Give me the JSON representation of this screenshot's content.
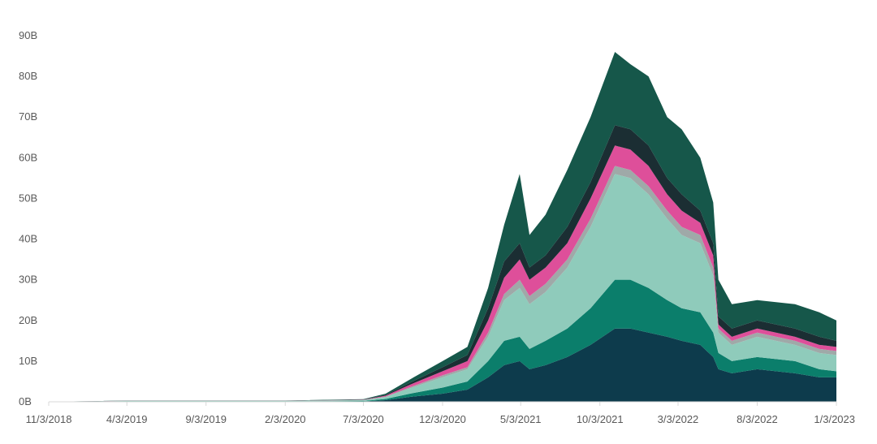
{
  "chart_data": {
    "type": "area",
    "stacked": true,
    "title": "",
    "xlabel": "",
    "ylabel": "",
    "ylim": [
      0,
      90
    ],
    "yticks": [
      "0B",
      "10B",
      "20B",
      "30B",
      "40B",
      "50B",
      "60B",
      "70B",
      "80B",
      "90B"
    ],
    "xticks": [
      "11/3/2018",
      "4/3/2019",
      "9/3/2019",
      "2/3/2020",
      "7/3/2020",
      "12/3/2020",
      "5/3/2021",
      "10/3/2021",
      "3/3/2022",
      "8/3/2022",
      "1/3/2023"
    ],
    "grid": false,
    "legend": "bottom",
    "x": [
      "2018-11-03",
      "2019-04-03",
      "2019-09-03",
      "2020-02-03",
      "2020-07-03",
      "2020-08-15",
      "2020-10-01",
      "2020-12-03",
      "2021-01-20",
      "2021-03-01",
      "2021-04-01",
      "2021-05-01",
      "2021-05-20",
      "2021-06-20",
      "2021-08-01",
      "2021-09-15",
      "2021-11-01",
      "2021-12-01",
      "2022-01-05",
      "2022-02-10",
      "2022-03-10",
      "2022-04-15",
      "2022-05-10",
      "2022-05-20",
      "2022-06-15",
      "2022-08-03",
      "2022-10-15",
      "2022-12-01",
      "2023-01-03"
    ],
    "series": [
      {
        "color": "#0d3b4c",
        "values": [
          0,
          0.05,
          0.05,
          0.05,
          0.1,
          0.4,
          1.2,
          2,
          3,
          6,
          9,
          10,
          8,
          9,
          11,
          14,
          18,
          18,
          17,
          16,
          15,
          14,
          11,
          8,
          7,
          8,
          7,
          6,
          6
        ]
      },
      {
        "color": "#0b7e6b",
        "values": [
          0,
          0.05,
          0.05,
          0.05,
          0.1,
          0.3,
          0.8,
          1.5,
          2,
          4,
          6,
          6,
          5,
          6,
          7,
          9,
          12,
          12,
          11,
          9,
          8,
          8,
          6,
          4,
          3,
          3,
          3,
          2,
          1.5
        ]
      },
      {
        "color": "#8fcbbb",
        "values": [
          0,
          0.1,
          0.1,
          0.1,
          0.2,
          0.5,
          1.3,
          2.5,
          3,
          6,
          10,
          12,
          11,
          12,
          15,
          20,
          26,
          25,
          23,
          20,
          18,
          17,
          14,
          5,
          4,
          5,
          4,
          4,
          4
        ]
      },
      {
        "color": "#9fa9a8",
        "values": [
          0,
          0.02,
          0.02,
          0.02,
          0.05,
          0.1,
          0.3,
          0.5,
          0.5,
          1,
          1.5,
          2,
          2,
          2,
          2,
          2,
          2,
          2,
          2,
          2,
          2,
          2,
          2,
          1,
          1,
          1,
          1,
          1,
          1
        ]
      },
      {
        "color": "#de4f9a",
        "values": [
          0,
          0.02,
          0.02,
          0.02,
          0.05,
          0.2,
          0.6,
          1,
          1.5,
          3,
          4,
          5,
          4,
          4,
          4,
          5,
          5,
          5,
          5,
          4,
          4,
          3,
          3,
          1,
          1,
          1,
          1,
          1,
          1
        ]
      },
      {
        "color": "#1b2e33",
        "values": [
          0,
          0.02,
          0.02,
          0.02,
          0.05,
          0.2,
          0.5,
          1,
          1.5,
          3,
          4,
          4,
          3,
          3,
          4,
          4,
          5,
          5,
          5,
          4,
          4,
          3,
          3,
          2,
          2,
          2,
          2,
          2,
          1.5
        ]
      },
      {
        "color": "#16574a",
        "values": [
          0,
          0.05,
          0.05,
          0.05,
          0.1,
          0.3,
          0.8,
          1.5,
          2,
          5,
          9,
          17,
          8,
          10,
          14,
          16,
          18,
          16,
          17,
          15,
          16,
          13,
          10,
          9,
          6,
          5,
          6,
          6,
          5
        ]
      }
    ]
  }
}
